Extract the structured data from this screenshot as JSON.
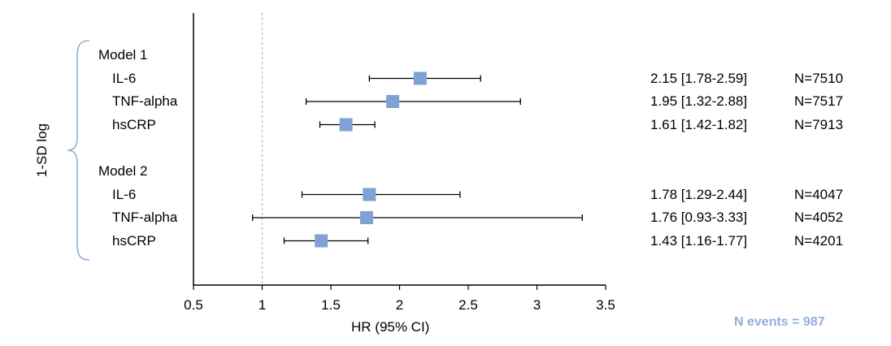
{
  "chart_data": {
    "type": "forest",
    "y_axis_label": "1-SD log",
    "xlabel": "HR (95% CI)",
    "xlim": [
      0.5,
      3.5
    ],
    "x_ticks": [
      "0.5",
      "1",
      "1.5",
      "2",
      "2.5",
      "3",
      "3.5"
    ],
    "reference_line": 1,
    "marker_color": "#7ea2d4",
    "bracket_color": "#8fb0d8",
    "groups": [
      {
        "name": "Model 1",
        "rows": [
          {
            "label": "IL-6",
            "hr": 2.15,
            "lo": 1.78,
            "hi": 2.59,
            "text": "2.15 [1.78-2.59]",
            "n": "N=7510"
          },
          {
            "label": "TNF-alpha",
            "hr": 1.95,
            "lo": 1.32,
            "hi": 2.88,
            "text": "1.95 [1.32-2.88]",
            "n": "N=7517"
          },
          {
            "label": "hsCRP",
            "hr": 1.61,
            "lo": 1.42,
            "hi": 1.82,
            "text": "1.61 [1.42-1.82]",
            "n": "N=7913"
          }
        ]
      },
      {
        "name": "Model 2",
        "rows": [
          {
            "label": "IL-6",
            "hr": 1.78,
            "lo": 1.29,
            "hi": 2.44,
            "text": "1.78 [1.29-2.44]",
            "n": "N=4047"
          },
          {
            "label": "TNF-alpha",
            "hr": 1.76,
            "lo": 0.93,
            "hi": 3.33,
            "text": "1.76 [0.93-3.33]",
            "n": "N=4052"
          },
          {
            "label": "hsCRP",
            "hr": 1.43,
            "lo": 1.16,
            "hi": 1.77,
            "text": "1.43 [1.16-1.77]",
            "n": "N=4201"
          }
        ]
      }
    ],
    "footnote": "N events = 987",
    "footnote_color": "#8fb0d8"
  }
}
